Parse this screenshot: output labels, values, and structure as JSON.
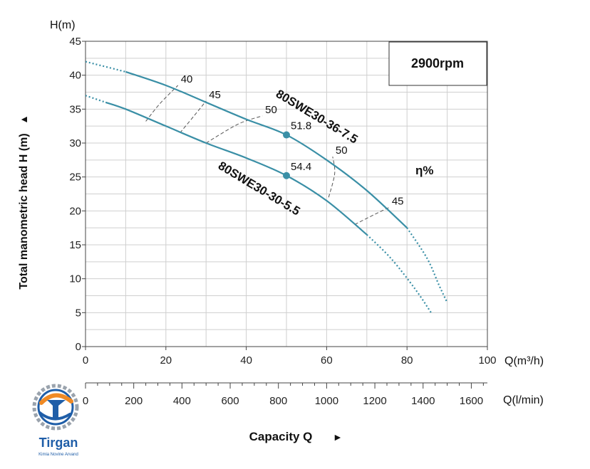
{
  "chart_data": {
    "type": "line",
    "y_top_label": "H(m)",
    "ylabel": "Total manometric head H (m)",
    "ylabel_arrow": "▲",
    "xlabel": "Capacity Q",
    "xlabel_arrow": "►",
    "x_unit": "Q(m³/h)",
    "x2_unit": "Q(l/min)",
    "speed_label": "2900rpm",
    "eff_label": "η%",
    "xlim": [
      0,
      100
    ],
    "ylim": [
      0,
      45
    ],
    "x2lim": [
      0,
      1666.7
    ],
    "x_ticks": [
      0,
      20,
      40,
      60,
      80,
      100
    ],
    "y_ticks": [
      0,
      5,
      10,
      15,
      20,
      25,
      30,
      35,
      40,
      45
    ],
    "x2_ticks": [
      0,
      200,
      400,
      600,
      800,
      1000,
      1200,
      1400,
      1600
    ],
    "grid": true,
    "series": [
      {
        "name": "80SWE30-36-7.5",
        "color": "#3a8fa6",
        "x": [
          0,
          10,
          20,
          30,
          40,
          50,
          60,
          70,
          80,
          85,
          88,
          90
        ],
        "y": [
          42,
          40.5,
          38.5,
          36,
          33.5,
          31.2,
          27.5,
          23,
          17.5,
          13,
          9,
          6.5
        ],
        "dotted_start": [
          0,
          10
        ],
        "dotted_end": [
          80,
          90
        ]
      },
      {
        "name": "80SWE30-30-5.5",
        "color": "#3a8fa6",
        "x": [
          0,
          5,
          10,
          20,
          30,
          40,
          50,
          60,
          70,
          76,
          82,
          86
        ],
        "y": [
          37,
          36,
          35,
          32.5,
          30,
          27.8,
          25.2,
          21.5,
          16.5,
          13,
          8.5,
          5
        ],
        "dotted_start": [
          0,
          5
        ],
        "dotted_end": [
          70,
          86
        ]
      }
    ],
    "bep_points": [
      {
        "x": 50,
        "y": 31.2,
        "label": "51.8"
      },
      {
        "x": 50,
        "y": 25.2,
        "label": "54.4"
      }
    ],
    "efficiency_lines": [
      {
        "label": "40",
        "x": [
          15,
          18.5,
          23
        ],
        "y": [
          33.2,
          35.8,
          38.5
        ]
      },
      {
        "label": "45",
        "x": [
          23.5,
          27,
          30
        ],
        "y": [
          31.5,
          34,
          36.2
        ]
      },
      {
        "label": "50",
        "x": [
          30,
          38,
          44
        ],
        "y": [
          30,
          32.8,
          34
        ]
      },
      {
        "label": "50",
        "x": [
          60.5,
          62,
          61.5
        ],
        "y": [
          22,
          25.5,
          28
        ]
      },
      {
        "label": "45",
        "x": [
          67,
          72,
          75.5
        ],
        "y": [
          18,
          19.5,
          20.5
        ]
      }
    ]
  },
  "brand": {
    "name": "Tirgan",
    "tagline": "Kimia Novine Arvand"
  },
  "colors": {
    "curve": "#3a8fa6",
    "grid": "#cfcfcf",
    "logo_blue": "#1f5ea8",
    "logo_orange": "#f08a24"
  }
}
